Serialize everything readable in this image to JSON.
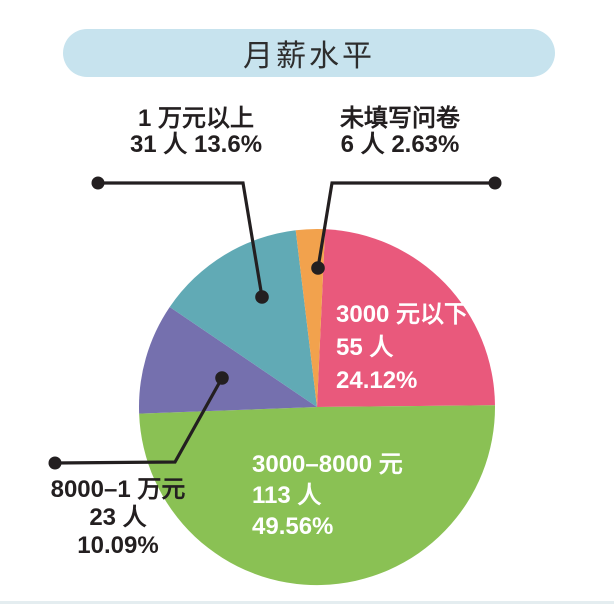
{
  "chart_data": {
    "type": "pie",
    "title": "月薪水平",
    "start_angle_deg": 2.6,
    "legend_position": "none",
    "segments": [
      {
        "id": "under-3000",
        "label": "3000 元以下",
        "value": 55,
        "people": "55 人",
        "pct": "24.12%",
        "color": "#e9597c",
        "label_position": "inside"
      },
      {
        "id": "3000-8000",
        "label": "3000–8000 元",
        "value": 113,
        "people": "113 人",
        "pct": "49.56%",
        "color": "#8ac154",
        "label_position": "inside"
      },
      {
        "id": "8000-10000",
        "label": "8000–1 万元",
        "value": 23,
        "people": "23 人",
        "pct": "10.09%",
        "color": "#7570ae",
        "label_position": "outside"
      },
      {
        "id": "above-10000",
        "label": "1 万元以上",
        "value": 31,
        "people": "31 人",
        "pct": "13.6%",
        "color": "#61aab5",
        "label_position": "outside"
      },
      {
        "id": "no-answer",
        "label": "未填写问卷",
        "value": 6,
        "people": "6 人",
        "pct": "2.63%",
        "color": "#f2a24d",
        "label_position": "outside"
      }
    ],
    "colors": {
      "title_pill_bg": "#c7e3ee",
      "ink": "#231f20",
      "inside_label_text": "#ffffff"
    }
  }
}
